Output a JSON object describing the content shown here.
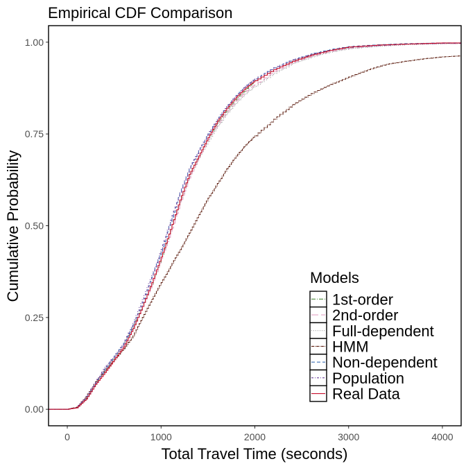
{
  "chart_data": {
    "type": "line",
    "step": true,
    "title": "Empirical CDF Comparison",
    "xlabel": "Total Travel Time (seconds)",
    "ylabel": "Cumulative Probability",
    "xlim": [
      -200,
      4200
    ],
    "ylim": [
      -0.045,
      1.045
    ],
    "x_ticks": [
      0,
      1000,
      2000,
      3000,
      4000
    ],
    "x_tick_labels": [
      "0",
      "1000",
      "2000",
      "3000",
      "4000"
    ],
    "y_ticks": [
      0,
      0.25,
      0.5,
      0.75,
      1
    ],
    "y_tick_labels": [
      "0.00",
      "0.25",
      "0.50",
      "0.75",
      "1.00"
    ],
    "grid": false,
    "legend": {
      "title": "Models",
      "placement": "bottom-right-inside"
    },
    "series": [
      {
        "name": "1st-order",
        "color": "#4e8a3e",
        "dash": "6 2 1 2",
        "points": [
          [
            0,
            0
          ],
          [
            100,
            0.005
          ],
          [
            200,
            0.03
          ],
          [
            300,
            0.07
          ],
          [
            400,
            0.11
          ],
          [
            500,
            0.14
          ],
          [
            600,
            0.175
          ],
          [
            700,
            0.225
          ],
          [
            800,
            0.28
          ],
          [
            900,
            0.34
          ],
          [
            1000,
            0.41
          ],
          [
            1100,
            0.49
          ],
          [
            1200,
            0.57
          ],
          [
            1300,
            0.64
          ],
          [
            1400,
            0.69
          ],
          [
            1500,
            0.74
          ],
          [
            1600,
            0.78
          ],
          [
            1700,
            0.815
          ],
          [
            1800,
            0.845
          ],
          [
            1900,
            0.87
          ],
          [
            2000,
            0.895
          ],
          [
            2200,
            0.925
          ],
          [
            2400,
            0.948
          ],
          [
            2600,
            0.965
          ],
          [
            2800,
            0.978
          ],
          [
            3000,
            0.986
          ],
          [
            3300,
            0.992
          ],
          [
            3600,
            0.995
          ],
          [
            4000,
            0.997
          ],
          [
            4200,
            0.997
          ]
        ]
      },
      {
        "name": "2nd-order",
        "color": "#e5a3c6",
        "dash": "10 4",
        "points": [
          [
            0,
            0
          ],
          [
            100,
            0.006
          ],
          [
            200,
            0.035
          ],
          [
            300,
            0.075
          ],
          [
            400,
            0.11
          ],
          [
            500,
            0.14
          ],
          [
            600,
            0.175
          ],
          [
            700,
            0.22
          ],
          [
            800,
            0.28
          ],
          [
            900,
            0.34
          ],
          [
            1000,
            0.41
          ],
          [
            1100,
            0.48
          ],
          [
            1200,
            0.56
          ],
          [
            1300,
            0.63
          ],
          [
            1400,
            0.685
          ],
          [
            1500,
            0.735
          ],
          [
            1600,
            0.775
          ],
          [
            1700,
            0.81
          ],
          [
            1800,
            0.84
          ],
          [
            1900,
            0.865
          ],
          [
            2000,
            0.885
          ],
          [
            2200,
            0.92
          ],
          [
            2400,
            0.945
          ],
          [
            2600,
            0.962
          ],
          [
            2800,
            0.975
          ],
          [
            3000,
            0.984
          ],
          [
            3300,
            0.99
          ],
          [
            3600,
            0.994
          ],
          [
            4000,
            0.996
          ],
          [
            4200,
            0.996
          ]
        ]
      },
      {
        "name": "Full-dependent",
        "color": "#8c8c8c",
        "dash": "1 2",
        "points": [
          [
            0,
            0
          ],
          [
            100,
            0.005
          ],
          [
            200,
            0.03
          ],
          [
            300,
            0.07
          ],
          [
            400,
            0.105
          ],
          [
            500,
            0.14
          ],
          [
            600,
            0.175
          ],
          [
            700,
            0.225
          ],
          [
            800,
            0.28
          ],
          [
            900,
            0.345
          ],
          [
            1000,
            0.415
          ],
          [
            1100,
            0.49
          ],
          [
            1200,
            0.565
          ],
          [
            1300,
            0.635
          ],
          [
            1400,
            0.685
          ],
          [
            1500,
            0.73
          ],
          [
            1600,
            0.77
          ],
          [
            1700,
            0.805
          ],
          [
            1800,
            0.835
          ],
          [
            1900,
            0.86
          ],
          [
            2000,
            0.88
          ],
          [
            2200,
            0.915
          ],
          [
            2400,
            0.942
          ],
          [
            2600,
            0.96
          ],
          [
            2800,
            0.973
          ],
          [
            3000,
            0.982
          ],
          [
            3300,
            0.989
          ],
          [
            3600,
            0.993
          ],
          [
            4000,
            0.996
          ],
          [
            4200,
            0.996
          ]
        ]
      },
      {
        "name": "HMM",
        "color": "#5a1a0c",
        "dash": "4 1 1 1",
        "points": [
          [
            0,
            0
          ],
          [
            100,
            0.006
          ],
          [
            200,
            0.035
          ],
          [
            300,
            0.075
          ],
          [
            400,
            0.105
          ],
          [
            500,
            0.135
          ],
          [
            600,
            0.165
          ],
          [
            700,
            0.2
          ],
          [
            800,
            0.25
          ],
          [
            900,
            0.3
          ],
          [
            1000,
            0.345
          ],
          [
            1100,
            0.39
          ],
          [
            1200,
            0.435
          ],
          [
            1300,
            0.48
          ],
          [
            1400,
            0.53
          ],
          [
            1500,
            0.575
          ],
          [
            1600,
            0.615
          ],
          [
            1700,
            0.655
          ],
          [
            1800,
            0.69
          ],
          [
            1900,
            0.72
          ],
          [
            2000,
            0.745
          ],
          [
            2200,
            0.79
          ],
          [
            2400,
            0.83
          ],
          [
            2600,
            0.86
          ],
          [
            2800,
            0.885
          ],
          [
            3000,
            0.905
          ],
          [
            3200,
            0.925
          ],
          [
            3400,
            0.94
          ],
          [
            3600,
            0.948
          ],
          [
            3800,
            0.955
          ],
          [
            4000,
            0.96
          ],
          [
            4200,
            0.963
          ]
        ]
      },
      {
        "name": "Non-dependent",
        "color": "#3b6fb5",
        "dash": "5 3",
        "points": [
          [
            0,
            0
          ],
          [
            100,
            0.004
          ],
          [
            200,
            0.03
          ],
          [
            300,
            0.07
          ],
          [
            400,
            0.11
          ],
          [
            500,
            0.145
          ],
          [
            600,
            0.18
          ],
          [
            700,
            0.23
          ],
          [
            800,
            0.29
          ],
          [
            900,
            0.36
          ],
          [
            1000,
            0.43
          ],
          [
            1100,
            0.51
          ],
          [
            1200,
            0.59
          ],
          [
            1300,
            0.655
          ],
          [
            1400,
            0.705
          ],
          [
            1500,
            0.75
          ],
          [
            1600,
            0.79
          ],
          [
            1700,
            0.825
          ],
          [
            1800,
            0.855
          ],
          [
            1900,
            0.88
          ],
          [
            2000,
            0.9
          ],
          [
            2200,
            0.93
          ],
          [
            2400,
            0.952
          ],
          [
            2600,
            0.968
          ],
          [
            2800,
            0.98
          ],
          [
            3000,
            0.988
          ],
          [
            3300,
            0.993
          ],
          [
            3600,
            0.996
          ],
          [
            4000,
            0.998
          ],
          [
            4200,
            0.998
          ]
        ]
      },
      {
        "name": "Population",
        "color": "#6a3d9a",
        "dash": "3 2 1 2",
        "points": [
          [
            0,
            0
          ],
          [
            100,
            0.005
          ],
          [
            200,
            0.035
          ],
          [
            300,
            0.075
          ],
          [
            400,
            0.115
          ],
          [
            500,
            0.145
          ],
          [
            600,
            0.18
          ],
          [
            700,
            0.235
          ],
          [
            800,
            0.3
          ],
          [
            900,
            0.365
          ],
          [
            1000,
            0.435
          ],
          [
            1100,
            0.515
          ],
          [
            1200,
            0.59
          ],
          [
            1300,
            0.655
          ],
          [
            1400,
            0.705
          ],
          [
            1500,
            0.75
          ],
          [
            1600,
            0.79
          ],
          [
            1700,
            0.825
          ],
          [
            1800,
            0.855
          ],
          [
            1900,
            0.88
          ],
          [
            2000,
            0.9
          ],
          [
            2200,
            0.93
          ],
          [
            2400,
            0.952
          ],
          [
            2600,
            0.967
          ],
          [
            2800,
            0.978
          ],
          [
            3000,
            0.986
          ],
          [
            3300,
            0.991
          ],
          [
            3600,
            0.995
          ],
          [
            4000,
            0.997
          ],
          [
            4200,
            0.997
          ]
        ]
      },
      {
        "name": "Real Data",
        "color": "#c8102e",
        "dash": "",
        "points": [
          [
            0,
            0
          ],
          [
            100,
            0.004
          ],
          [
            200,
            0.028
          ],
          [
            300,
            0.068
          ],
          [
            400,
            0.1
          ],
          [
            500,
            0.135
          ],
          [
            600,
            0.17
          ],
          [
            700,
            0.22
          ],
          [
            800,
            0.28
          ],
          [
            900,
            0.345
          ],
          [
            1000,
            0.415
          ],
          [
            1100,
            0.49
          ],
          [
            1200,
            0.57
          ],
          [
            1300,
            0.64
          ],
          [
            1400,
            0.69
          ],
          [
            1500,
            0.74
          ],
          [
            1600,
            0.785
          ],
          [
            1700,
            0.82
          ],
          [
            1800,
            0.85
          ],
          [
            1900,
            0.875
          ],
          [
            2000,
            0.895
          ],
          [
            2200,
            0.925
          ],
          [
            2400,
            0.948
          ],
          [
            2600,
            0.965
          ],
          [
            2800,
            0.978
          ],
          [
            3000,
            0.987
          ],
          [
            3300,
            0.992
          ],
          [
            3600,
            0.995
          ],
          [
            4000,
            0.998
          ],
          [
            4200,
            0.998
          ]
        ]
      }
    ]
  }
}
